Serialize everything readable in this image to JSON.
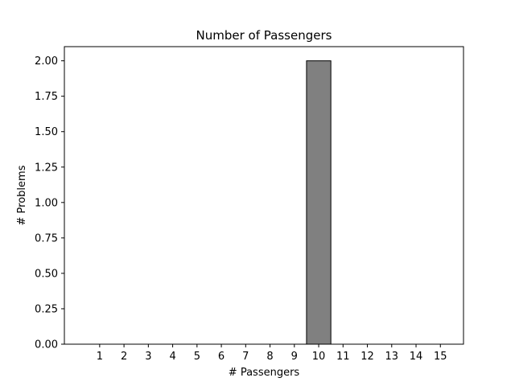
{
  "chart_data": {
    "type": "bar",
    "title": "Number of Passengers",
    "xlabel": "# Passengers",
    "ylabel": "# Problems",
    "categories": [
      "1",
      "2",
      "3",
      "4",
      "5",
      "6",
      "7",
      "8",
      "9",
      "10",
      "11",
      "12",
      "13",
      "14",
      "15"
    ],
    "values": [
      0,
      0,
      0,
      0,
      0,
      0,
      0,
      0,
      0,
      2,
      0,
      0,
      0,
      0,
      0
    ],
    "ylim": [
      0,
      2.1
    ],
    "yticks": [
      "0.00",
      "0.25",
      "0.50",
      "0.75",
      "1.00",
      "1.25",
      "1.50",
      "1.75",
      "2.00"
    ],
    "grid": false,
    "bar_color": "#808080",
    "edge_color": "#000000"
  }
}
